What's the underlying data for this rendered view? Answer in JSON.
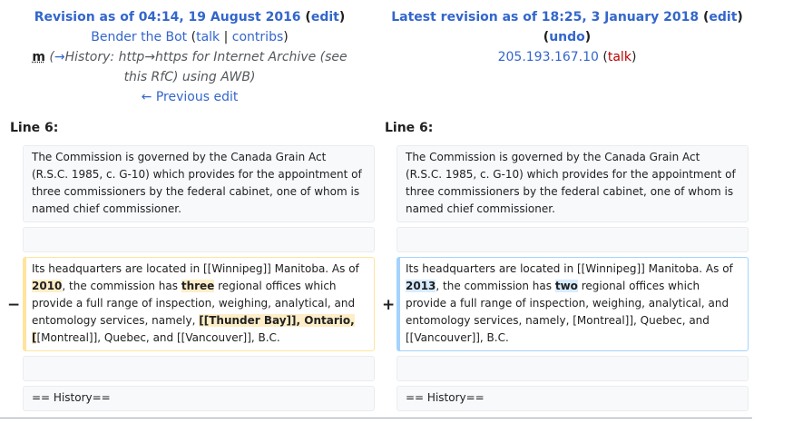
{
  "left": {
    "title_prefix": "Revision as of 04:14, 19 August 2016",
    "edit_label": "edit",
    "user": "Bender the Bot",
    "talk_label": "talk",
    "contribs_label": "contribs",
    "minor_flag": "m",
    "summary": {
      "arrow": "→",
      "section": "History:",
      "text1": " http→https for ",
      "link1": "Internet Archive",
      "text2": " (see ",
      "link2": "this RfC",
      "text3": ") using ",
      "link3": "AWB",
      "text4": ")"
    },
    "previous_edit": "← Previous edit",
    "line_label": "Line 6:"
  },
  "right": {
    "title_prefix": "Latest revision as of 18:25, 3 January 2018",
    "edit_label": "edit",
    "undo_label": "undo",
    "user": "205.193.167.10",
    "talk_label": "talk",
    "line_label": "Line 6:"
  },
  "diff": {
    "context1": "The Commission is governed by the Canada Grain Act (R.S.C. 1985, c. G-10) which provides for the appointment of three commissioners by the federal cabinet, one of whom is named chief commissioner.",
    "del_marker": "−",
    "add_marker": "+",
    "old": {
      "t1": "Its headquarters are located in [[Winnipeg]] Manitoba. As of ",
      "h1": "2010",
      "t2": ", the commission has ",
      "h2": "three",
      "t3": " regional offices which provide a full range of inspection, weighing, analytical, and entomology services, namely, ",
      "h3": "[[Thunder Bay]], Ontario, [",
      "t4": "[Montreal]], Quebec, and [[Vancouver]], B.C."
    },
    "new": {
      "t1": "Its headquarters are located in [[Winnipeg]] Manitoba. As of ",
      "h1": "2013",
      "t2": ", the commission has ",
      "h2": "two",
      "t3": " regional offices which provide a full range of inspection, weighing, analytical, and entomology services, namely, [Montreal]], Quebec, and [[Vancouver]], B.C."
    },
    "context2": "== History=="
  }
}
